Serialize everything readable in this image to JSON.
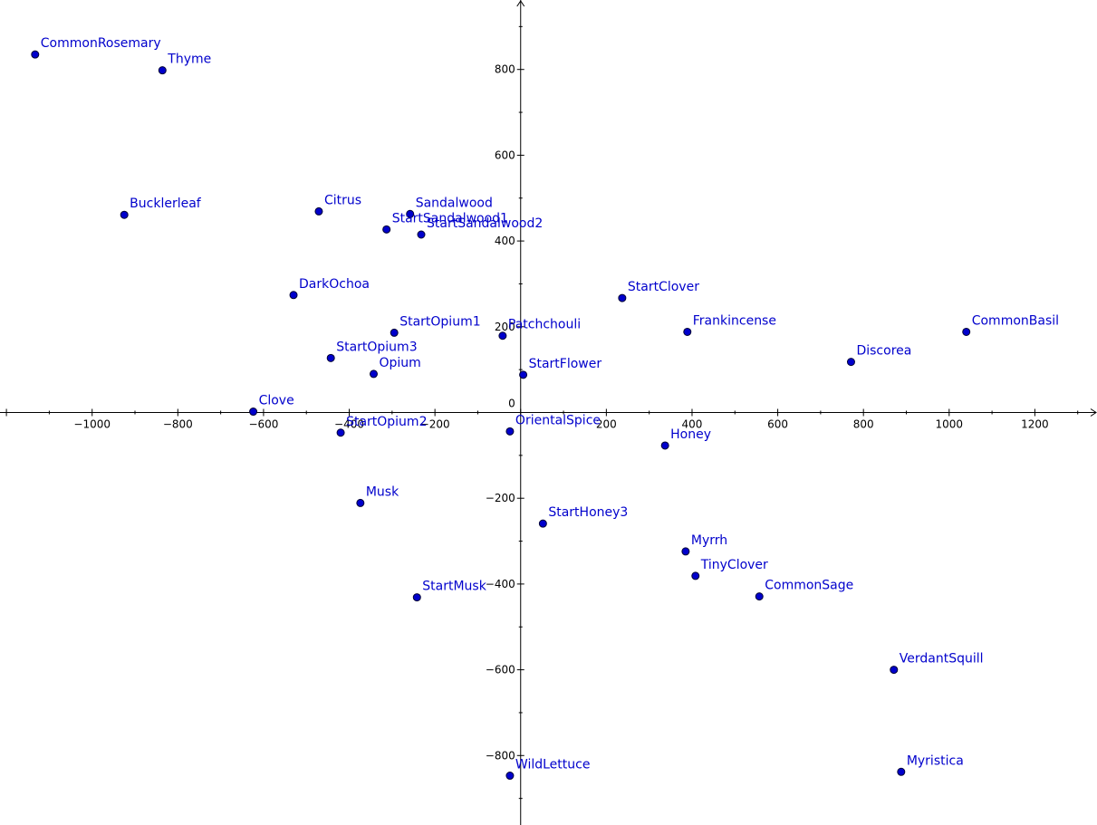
{
  "chart_data": {
    "type": "scatter",
    "title": "",
    "xlabel": "",
    "ylabel": "",
    "xlim": [
      -1215,
      1345
    ],
    "ylim": [
      -962,
      962
    ],
    "grid": false,
    "x_ticks": [
      -1000,
      -800,
      -600,
      -400,
      -200,
      200,
      400,
      600,
      800,
      1000,
      1200
    ],
    "y_ticks": [
      800,
      600,
      400,
      200,
      0,
      -200,
      -400,
      -600,
      -800
    ],
    "x_tick_labels": [
      "−1000",
      "−800",
      "−600",
      "−400",
      "−200",
      "200",
      "400",
      "600",
      "800",
      "1000",
      "1200"
    ],
    "y_tick_labels": [
      "800",
      "600",
      "400",
      "200",
      "0",
      "−200",
      "−400",
      "−600",
      "−800"
    ],
    "point_color": "#0000cc",
    "point_stroke": "#000033",
    "label_color": "#0000cc",
    "axis_color": "#000000",
    "points": [
      {
        "label": "CommonRosemary",
        "x": -1133,
        "y": 835
      },
      {
        "label": "Thyme",
        "x": -836,
        "y": 798
      },
      {
        "label": "Bucklerleaf",
        "x": -925,
        "y": 461
      },
      {
        "label": "Citrus",
        "x": -471,
        "y": 469
      },
      {
        "label": "Sandalwood",
        "x": -258,
        "y": 463
      },
      {
        "label": "StartSandalwood1",
        "x": -313,
        "y": 427
      },
      {
        "label": "StartSandalwood2",
        "x": -232,
        "y": 415
      },
      {
        "label": "DarkOchoa",
        "x": -530,
        "y": 274
      },
      {
        "label": "StartClover",
        "x": 237,
        "y": 267
      },
      {
        "label": "StartOpium1",
        "x": -295,
        "y": 186
      },
      {
        "label": "Patchchouli",
        "x": -42,
        "y": 179
      },
      {
        "label": "Frankincense",
        "x": 389,
        "y": 188
      },
      {
        "label": "CommonBasil",
        "x": 1040,
        "y": 188
      },
      {
        "label": "StartOpium3",
        "x": -443,
        "y": 127
      },
      {
        "label": "Discorea",
        "x": 771,
        "y": 118
      },
      {
        "label": "Opium",
        "x": -343,
        "y": 90
      },
      {
        "label": "StartFlower",
        "x": 6,
        "y": 88
      },
      {
        "label": "Clove",
        "x": -624,
        "y": 2
      },
      {
        "label": "StartOpium2",
        "x": -420,
        "y": -47
      },
      {
        "label": "OrientalSpice",
        "x": -25,
        "y": -44
      },
      {
        "label": "Honey",
        "x": 337,
        "y": -77
      },
      {
        "label": "Musk",
        "x": -374,
        "y": -211
      },
      {
        "label": "StartHoney3",
        "x": 52,
        "y": -259
      },
      {
        "label": "Myrrh",
        "x": 385,
        "y": -324
      },
      {
        "label": "TinyClover",
        "x": 408,
        "y": -381
      },
      {
        "label": "CommonSage",
        "x": 557,
        "y": -429
      },
      {
        "label": "StartMusk",
        "x": -242,
        "y": -431
      },
      {
        "label": "VerdantSquill",
        "x": 871,
        "y": -600
      },
      {
        "label": "WildLettuce",
        "x": -25,
        "y": -847
      },
      {
        "label": "Myristica",
        "x": 888,
        "y": -838
      }
    ]
  }
}
